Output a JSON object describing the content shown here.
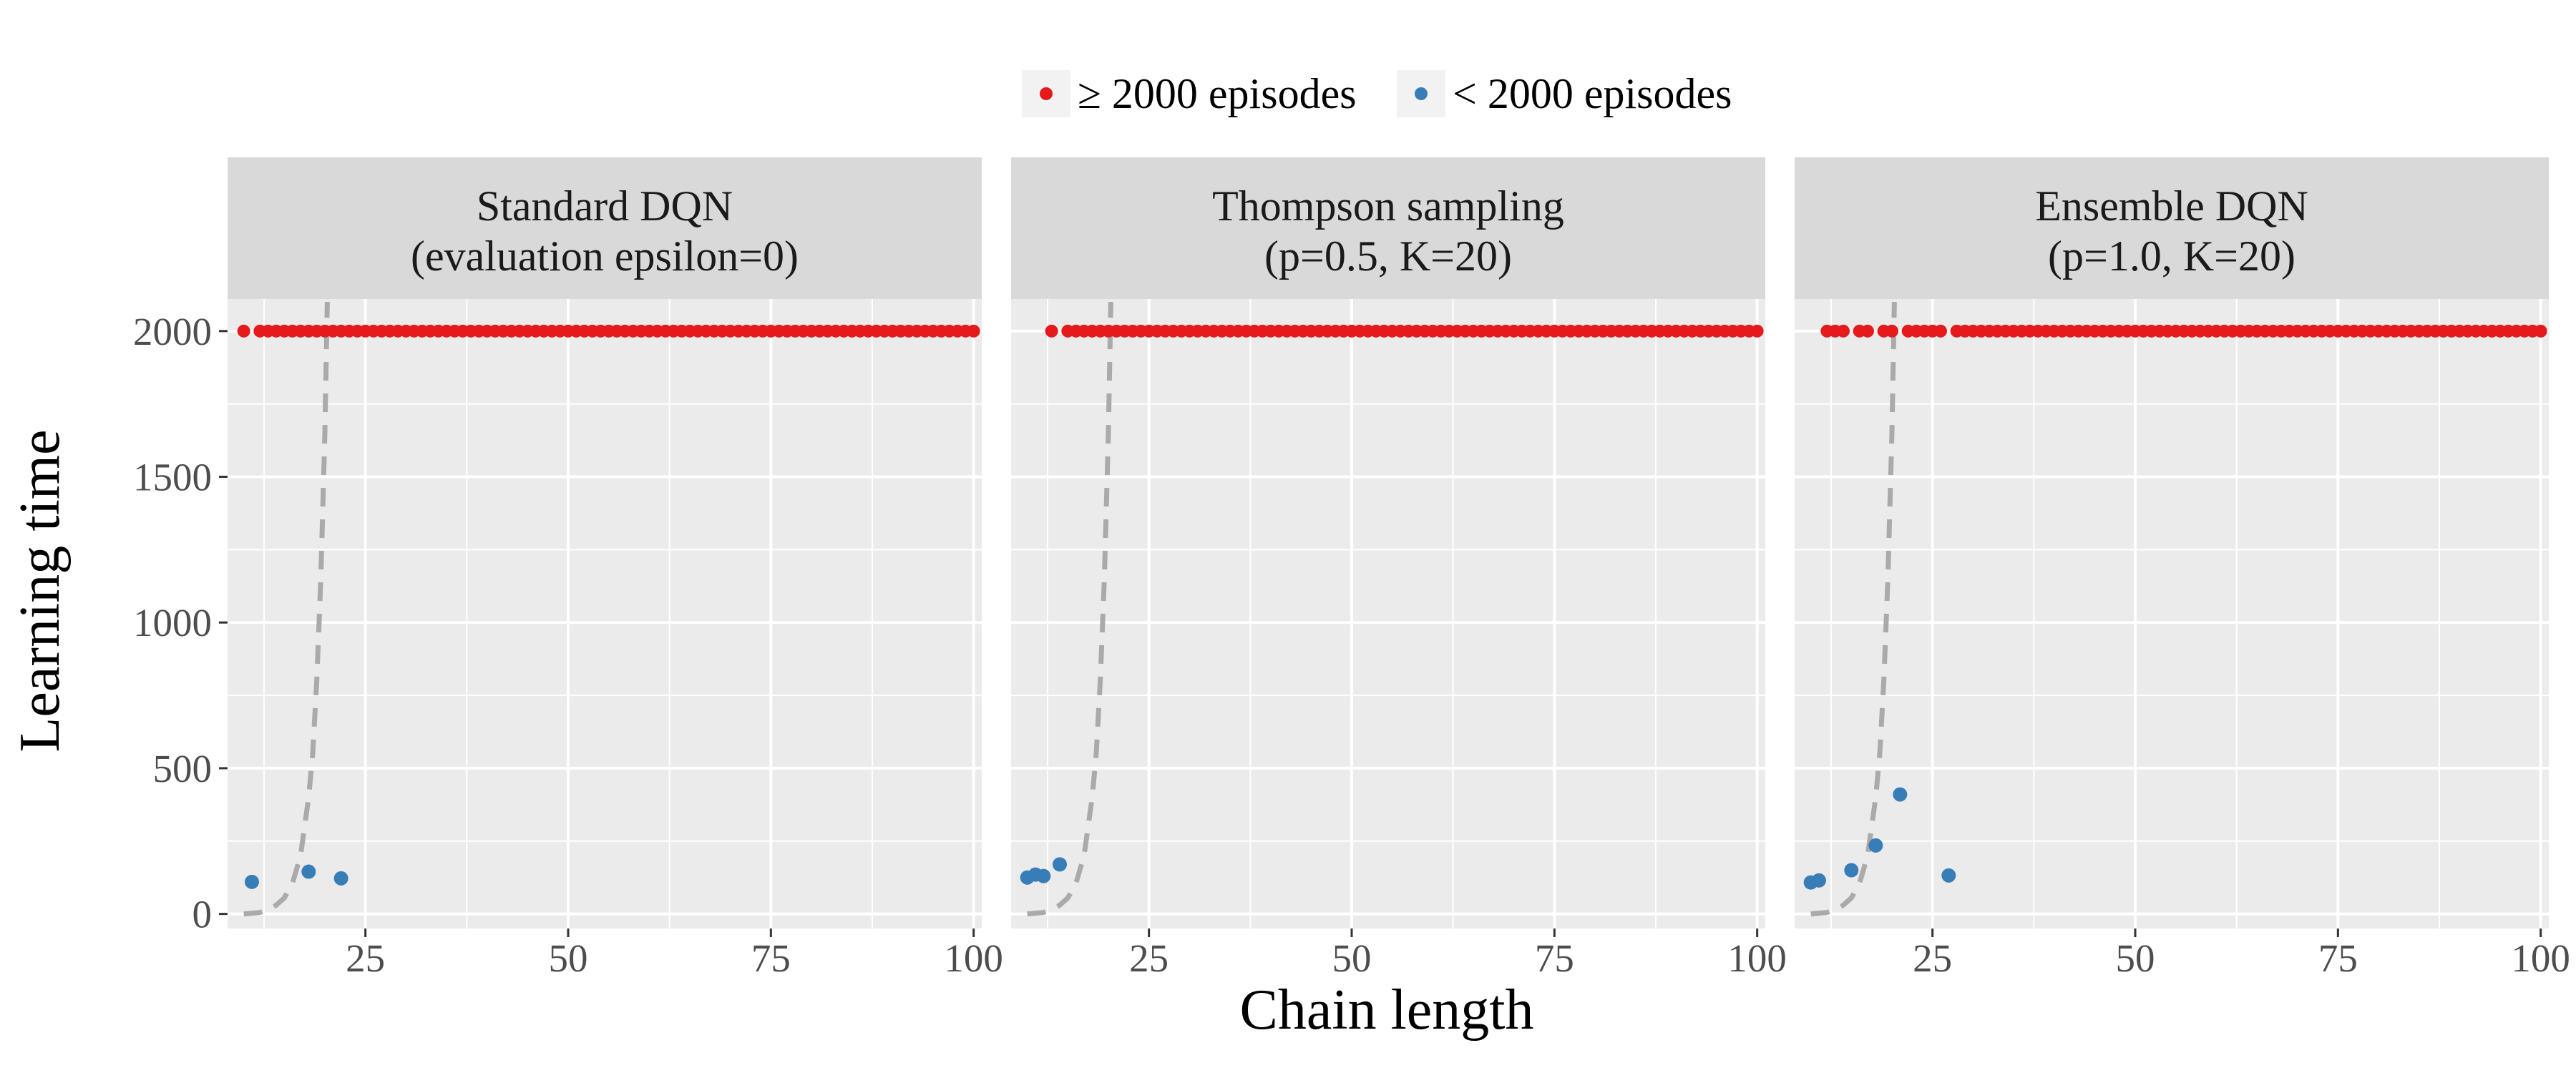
{
  "colors": {
    "ge2000": "#E41A1C",
    "lt2000": "#377EB8",
    "curve": "#AAAAAA",
    "panel_bg": "#EBEBEB",
    "strip_bg": "#D9D9D9",
    "grid": "#FFFFFF"
  },
  "legend": {
    "items": [
      {
        "key": "ge2000",
        "label": "≥ 2000 episodes"
      },
      {
        "key": "lt2000",
        "label": "< 2000 episodes"
      }
    ]
  },
  "chart_data": {
    "type": "scatter",
    "xlabel": "Chain length",
    "ylabel": "Learning time",
    "xlim": [
      8,
      101
    ],
    "ylim": [
      -50,
      2110
    ],
    "xticks": [
      25,
      50,
      75,
      100
    ],
    "yticks": [
      0,
      500,
      1000,
      1500,
      2000
    ],
    "grid": true,
    "legend_position": "top",
    "reference_curve": {
      "style": "dashed",
      "points": [
        [
          10,
          0
        ],
        [
          12,
          5
        ],
        [
          13,
          15
        ],
        [
          14,
          30
        ],
        [
          15,
          55
        ],
        [
          16,
          105
        ],
        [
          17,
          200
        ],
        [
          18,
          400
        ],
        [
          18.5,
          550
        ],
        [
          19,
          800
        ],
        [
          19.5,
          1150
        ],
        [
          20,
          1650
        ],
        [
          20.3,
          2100
        ]
      ]
    },
    "panels": [
      {
        "title_line1": "Standard DQN",
        "title_line2": "(evaluation epsilon=0)",
        "series": {
          "ge2000": {
            "x": [
              10,
              12,
              13,
              14,
              15,
              16,
              17,
              18,
              19,
              20,
              21,
              22,
              23,
              24,
              25,
              26,
              27,
              28,
              29,
              30,
              31,
              32,
              33,
              34,
              35,
              36,
              37,
              38,
              39,
              40,
              41,
              42,
              43,
              44,
              45,
              46,
              47,
              48,
              49,
              50,
              51,
              52,
              53,
              54,
              55,
              56,
              57,
              58,
              59,
              60,
              61,
              62,
              63,
              64,
              65,
              66,
              67,
              68,
              69,
              70,
              71,
              72,
              73,
              74,
              75,
              76,
              77,
              78,
              79,
              80,
              81,
              82,
              83,
              84,
              85,
              86,
              87,
              88,
              89,
              90,
              91,
              92,
              93,
              94,
              95,
              96,
              97,
              98,
              99,
              100
            ],
            "y": 2000
          },
          "lt2000": {
            "x": [
              11,
              18,
              22
            ],
            "y": [
              110,
              145,
              122
            ]
          }
        }
      },
      {
        "title_line1": "Thompson sampling",
        "title_line2": "(p=0.5, K=20)",
        "series": {
          "ge2000": {
            "x": [
              13,
              15,
              16,
              17,
              18,
              19,
              20,
              21,
              22,
              23,
              24,
              25,
              26,
              27,
              28,
              29,
              30,
              31,
              32,
              33,
              34,
              35,
              36,
              37,
              38,
              39,
              40,
              41,
              42,
              43,
              44,
              45,
              46,
              47,
              48,
              49,
              50,
              51,
              52,
              53,
              54,
              55,
              56,
              57,
              58,
              59,
              60,
              61,
              62,
              63,
              64,
              65,
              66,
              67,
              68,
              69,
              70,
              71,
              72,
              73,
              74,
              75,
              76,
              77,
              78,
              79,
              80,
              81,
              82,
              83,
              84,
              85,
              86,
              87,
              88,
              89,
              90,
              91,
              92,
              93,
              94,
              95,
              96,
              97,
              98,
              99,
              100
            ],
            "y": 2000
          },
          "lt2000": {
            "x": [
              10,
              11,
              12,
              14
            ],
            "y": [
              125,
              135,
              130,
              170
            ]
          }
        }
      },
      {
        "title_line1": "Ensemble DQN",
        "title_line2": "(p=1.0, K=20)",
        "series": {
          "ge2000": {
            "x": [
              12,
              13,
              14,
              16,
              17,
              19,
              20,
              22,
              23,
              24,
              25,
              26,
              28,
              29,
              30,
              31,
              32,
              33,
              34,
              35,
              36,
              37,
              38,
              39,
              40,
              41,
              42,
              43,
              44,
              45,
              46,
              47,
              48,
              49,
              50,
              51,
              52,
              53,
              54,
              55,
              56,
              57,
              58,
              59,
              60,
              61,
              62,
              63,
              64,
              65,
              66,
              67,
              68,
              69,
              70,
              71,
              72,
              73,
              74,
              75,
              76,
              77,
              78,
              79,
              80,
              81,
              82,
              83,
              84,
              85,
              86,
              87,
              88,
              89,
              90,
              91,
              92,
              93,
              94,
              95,
              96,
              97,
              98,
              99,
              100
            ],
            "y": 2000
          },
          "lt2000": {
            "x": [
              10,
              11,
              15,
              18,
              21,
              27
            ],
            "y": [
              108,
              115,
              150,
              235,
              410,
              132
            ]
          }
        }
      }
    ]
  }
}
